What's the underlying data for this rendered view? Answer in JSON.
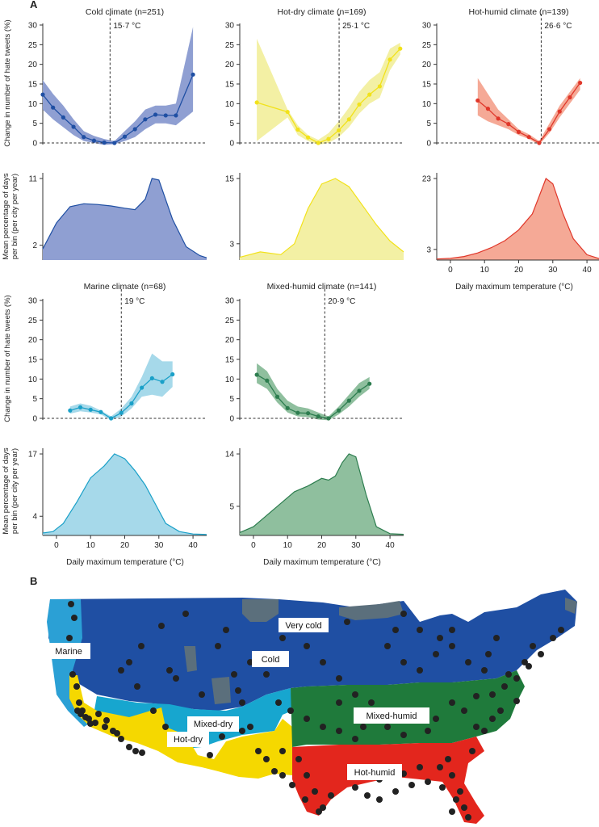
{
  "figure": {
    "panel_a_letter": "A",
    "panel_b_letter": "B",
    "ylabel_top": "Change in number of hate tweets (%)",
    "ylabel_bottom_line1": "Mean percentage of days",
    "ylabel_bottom_line2": "per bin (per city per year)",
    "xlabel": "Daily maximum temperature (°C)"
  },
  "chart_data": [
    {
      "type": "line",
      "title": "Cold climate (n=251)",
      "threshold_label": "15·7 °C",
      "threshold": 15.7,
      "xlim": [
        -4,
        44
      ],
      "ylim": [
        0,
        30
      ],
      "yticks": [
        0,
        5,
        10,
        15,
        20,
        25,
        30
      ],
      "color": "#1f4fa3",
      "fill_color": "#8f9fd2",
      "x": [
        -4,
        -1,
        2,
        5,
        8,
        11,
        14,
        17,
        20,
        23,
        26,
        29,
        32,
        35,
        40
      ],
      "y": [
        12.3,
        9.0,
        6.5,
        4.1,
        1.5,
        0.6,
        0.1,
        0.0,
        1.6,
        3.5,
        6.0,
        7.2,
        7.0,
        7.0,
        17.4
      ],
      "lower": [
        8.5,
        6.0,
        4.0,
        2.0,
        0.5,
        0.0,
        -0.5,
        -0.3,
        0.5,
        1.5,
        3.5,
        5.0,
        5.0,
        4.5,
        8.0
      ],
      "upper": [
        16.0,
        12.5,
        9.5,
        6.0,
        3.0,
        1.8,
        1.0,
        0.5,
        3.0,
        5.5,
        8.5,
        9.5,
        9.5,
        10.0,
        29.5
      ],
      "dist_x": [
        -4,
        0,
        4,
        8,
        12,
        16,
        20,
        23,
        26,
        28,
        30,
        34,
        38,
        42,
        44
      ],
      "dist_y": [
        1.5,
        5.0,
        7.2,
        7.6,
        7.5,
        7.3,
        7.0,
        6.8,
        8.2,
        11.0,
        10.8,
        5.5,
        1.8,
        0.6,
        0.3
      ],
      "dist_yticks": [
        2,
        11
      ]
    },
    {
      "type": "line",
      "title": "Hot-dry climate (n=169)",
      "threshold_label": "25·1 °C",
      "threshold": 25.1,
      "xlim": [
        -4,
        44
      ],
      "ylim": [
        0,
        30
      ],
      "yticks": [
        0,
        5,
        10,
        15,
        20,
        25,
        30
      ],
      "color": "#f2e21a",
      "fill_color": "#f3f0a4",
      "x": [
        1,
        10,
        13,
        16,
        19,
        22,
        25,
        28,
        31,
        34,
        37,
        40,
        43
      ],
      "y": [
        10.3,
        7.9,
        3.4,
        1.4,
        0.0,
        1.0,
        3.2,
        6.0,
        9.8,
        12.3,
        14.4,
        21.2,
        24.0
      ],
      "lower": [
        0.5,
        6.5,
        2.0,
        0.5,
        -0.5,
        0.0,
        1.5,
        4.0,
        7.5,
        10.0,
        11.5,
        18.5,
        22.5
      ],
      "upper": [
        26.5,
        8.5,
        4.5,
        2.0,
        0.8,
        2.5,
        5.5,
        9.0,
        13.0,
        16.0,
        18.0,
        24.0,
        25.5
      ],
      "dist_x": [
        -4,
        2,
        8,
        12,
        16,
        20,
        24,
        28,
        32,
        36,
        40,
        44
      ],
      "dist_y": [
        0.5,
        1.5,
        1.0,
        3.0,
        9.5,
        14.0,
        15.0,
        13.5,
        10.0,
        6.5,
        3.5,
        1.5
      ],
      "dist_yticks": [
        3,
        15
      ]
    },
    {
      "type": "line",
      "title": "Hot-humid climate (n=139)",
      "threshold_label": "26·6 °C",
      "threshold": 26.6,
      "xlim": [
        -4,
        44
      ],
      "ylim": [
        0,
        30
      ],
      "yticks": [
        0,
        5,
        10,
        15,
        20,
        25,
        30
      ],
      "color": "#e0372a",
      "fill_color": "#f5a996",
      "x": [
        8,
        11,
        14,
        17,
        20,
        23,
        26,
        29,
        32,
        35,
        38
      ],
      "y": [
        10.8,
        8.7,
        6.2,
        4.8,
        2.8,
        1.5,
        0.0,
        3.5,
        8.0,
        11.6,
        15.3
      ],
      "lower": [
        7.0,
        5.5,
        4.5,
        3.5,
        2.0,
        1.0,
        -0.5,
        2.5,
        6.5,
        10.0,
        13.5
      ],
      "upper": [
        16.5,
        12.5,
        8.5,
        6.0,
        3.5,
        2.2,
        0.5,
        5.0,
        9.5,
        13.0,
        16.5
      ],
      "dist_x": [
        -4,
        0,
        4,
        8,
        12,
        16,
        20,
        24,
        26,
        28,
        30,
        33,
        36,
        40,
        44
      ],
      "dist_y": [
        0.3,
        0.5,
        1.0,
        2.0,
        3.5,
        5.5,
        8.5,
        13.0,
        18.0,
        23.0,
        21.5,
        13.0,
        6.0,
        1.5,
        0.3
      ],
      "dist_yticks": [
        3,
        23
      ],
      "show_xaxis": true,
      "xticks": [
        0,
        10,
        20,
        30,
        40
      ]
    },
    {
      "type": "line",
      "title": "Marine climate (n=68)",
      "threshold_label": "19 °C",
      "threshold": 19,
      "xlim": [
        -4,
        44
      ],
      "ylim": [
        0,
        30
      ],
      "yticks": [
        0,
        5,
        10,
        15,
        20,
        25,
        30
      ],
      "color": "#1aa0c8",
      "fill_color": "#a6d9ea",
      "x": [
        4,
        7,
        10,
        13,
        16,
        19,
        22,
        25,
        28,
        31,
        34
      ],
      "y": [
        2.0,
        2.8,
        2.2,
        1.6,
        0.0,
        1.4,
        3.8,
        7.8,
        10.2,
        9.3,
        11.2
      ],
      "lower": [
        1.2,
        1.8,
        1.5,
        1.0,
        -0.5,
        0.5,
        2.5,
        5.5,
        6.0,
        5.5,
        8.0
      ],
      "upper": [
        3.0,
        3.8,
        3.2,
        2.0,
        0.5,
        2.5,
        5.5,
        10.5,
        16.5,
        14.5,
        14.5
      ],
      "dist_x": [
        -4,
        -1,
        2,
        6,
        10,
        14,
        17,
        20,
        23,
        26,
        29,
        32,
        36,
        40,
        44
      ],
      "dist_y": [
        0.5,
        0.8,
        2.5,
        7.0,
        12.0,
        14.5,
        17.0,
        16.0,
        13.5,
        10.5,
        6.5,
        2.5,
        0.8,
        0.3,
        0.2
      ],
      "dist_yticks": [
        4,
        17
      ],
      "show_xaxis": true,
      "xticks": [
        0,
        10,
        20,
        30,
        40
      ]
    },
    {
      "type": "line",
      "title": "Mixed-humid climate (n=141)",
      "threshold_label": "20·9 °C",
      "threshold": 20.9,
      "xlim": [
        -4,
        44
      ],
      "ylim": [
        0,
        30
      ],
      "yticks": [
        0,
        5,
        10,
        15,
        20,
        25,
        30
      ],
      "color": "#2d7d4f",
      "fill_color": "#8fbf9e",
      "x": [
        1,
        4,
        7,
        10,
        13,
        16,
        19,
        22,
        25,
        28,
        31,
        34
      ],
      "y": [
        11.1,
        9.6,
        5.5,
        2.6,
        1.4,
        1.3,
        0.5,
        0.0,
        2.0,
        4.5,
        7.0,
        8.8
      ],
      "lower": [
        9.0,
        7.5,
        4.0,
        1.5,
        0.5,
        0.3,
        -0.3,
        -0.5,
        1.0,
        3.0,
        5.5,
        7.5
      ],
      "upper": [
        14.0,
        12.0,
        7.5,
        4.5,
        3.0,
        2.5,
        1.5,
        0.5,
        3.0,
        6.0,
        9.0,
        10.5
      ],
      "dist_x": [
        -4,
        0,
        4,
        8,
        12,
        16,
        20,
        22,
        24,
        26,
        28,
        30,
        33,
        36,
        40,
        44
      ],
      "dist_y": [
        0.5,
        1.5,
        3.5,
        5.5,
        7.5,
        8.5,
        9.8,
        9.5,
        10.2,
        12.5,
        14.0,
        13.5,
        7.0,
        1.5,
        0.3,
        0.2
      ],
      "dist_yticks": [
        5,
        14
      ],
      "show_xaxis": true,
      "xticks": [
        0,
        10,
        20,
        30,
        40
      ]
    }
  ],
  "map": {
    "labels": {
      "very_cold": "Very cold",
      "marine": "Marine",
      "cold": "Cold",
      "mixed_dry": "Mixed-dry",
      "hot_dry": "Hot-dry",
      "mixed_humid": "Mixed-humid",
      "hot_humid": "Hot-humid"
    },
    "colors": {
      "very_cold": "#5b6f7c",
      "cold": "#1f4fa3",
      "marine": "#2ba0d5",
      "mixed_dry": "#17a6cf",
      "hot_dry": "#f5d800",
      "mixed_humid": "#1f7a3b",
      "hot_humid": "#e3261d",
      "city_dot": "#222222"
    }
  }
}
